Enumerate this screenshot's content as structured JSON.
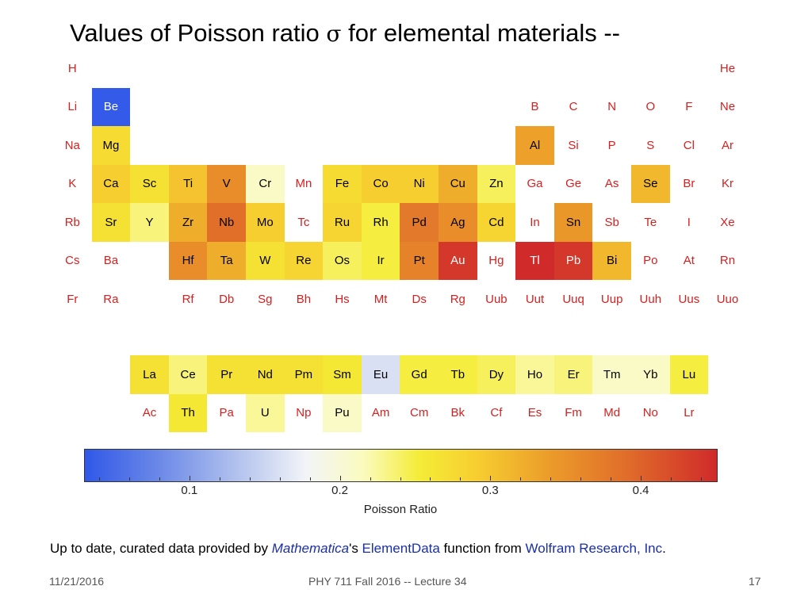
{
  "slide": {
    "title_prefix": "Values of  Poisson ratio ",
    "title_symbol": "σ",
    "title_suffix": " for elemental materials --",
    "credit": {
      "part1": "Up to date, curated data provided by ",
      "mathematica": "Mathematica",
      "part2": "'s ",
      "elementdata": "ElementData",
      "part3": " function from ",
      "wolfram": "Wolfram Research, Inc",
      "part4": "."
    },
    "footer": {
      "date": "11/21/2016",
      "course": "PHY 711  Fall 2016 -- Lecture 34",
      "page": "17"
    }
  },
  "chart_data": {
    "type": "heatmap",
    "colorbar": {
      "label": "Poisson Ratio",
      "range": [
        0.03,
        0.45
      ],
      "ticks": [
        "0.1",
        "0.2",
        "0.3",
        "0.4"
      ],
      "tick_values": [
        0.1,
        0.2,
        0.3,
        0.4
      ],
      "colors": [
        "#3058e8",
        "#6d8ae8",
        "#b7c6ee",
        "#f2f4f8",
        "#fbfbbf",
        "#f4ec36",
        "#f7ce30",
        "#eb9a2a",
        "#e06c2a",
        "#d02a2a"
      ]
    },
    "no_data_color": "#d62020",
    "elements": [
      {
        "symbol": "H",
        "period": 1,
        "group": 1,
        "value": null
      },
      {
        "symbol": "He",
        "period": 1,
        "group": 18,
        "value": null
      },
      {
        "symbol": "Li",
        "period": 2,
        "group": 1,
        "value": null
      },
      {
        "symbol": "Be",
        "period": 2,
        "group": 2,
        "value": 0.032
      },
      {
        "symbol": "B",
        "period": 2,
        "group": 13,
        "value": null
      },
      {
        "symbol": "C",
        "period": 2,
        "group": 14,
        "value": null
      },
      {
        "symbol": "N",
        "period": 2,
        "group": 15,
        "value": null
      },
      {
        "symbol": "O",
        "period": 2,
        "group": 16,
        "value": null
      },
      {
        "symbol": "F",
        "period": 2,
        "group": 17,
        "value": null
      },
      {
        "symbol": "Ne",
        "period": 2,
        "group": 18,
        "value": null
      },
      {
        "symbol": "Na",
        "period": 3,
        "group": 1,
        "value": null
      },
      {
        "symbol": "Mg",
        "period": 3,
        "group": 2,
        "value": 0.29
      },
      {
        "symbol": "Al",
        "period": 3,
        "group": 13,
        "value": 0.35
      },
      {
        "symbol": "Si",
        "period": 3,
        "group": 14,
        "value": null
      },
      {
        "symbol": "P",
        "period": 3,
        "group": 15,
        "value": null
      },
      {
        "symbol": "S",
        "period": 3,
        "group": 16,
        "value": null
      },
      {
        "symbol": "Cl",
        "period": 3,
        "group": 17,
        "value": null
      },
      {
        "symbol": "Ar",
        "period": 3,
        "group": 18,
        "value": null
      },
      {
        "symbol": "K",
        "period": 4,
        "group": 1,
        "value": null
      },
      {
        "symbol": "Ca",
        "period": 4,
        "group": 2,
        "value": 0.31
      },
      {
        "symbol": "Sc",
        "period": 4,
        "group": 3,
        "value": 0.28
      },
      {
        "symbol": "Ti",
        "period": 4,
        "group": 4,
        "value": 0.32
      },
      {
        "symbol": "V",
        "period": 4,
        "group": 5,
        "value": 0.37
      },
      {
        "symbol": "Cr",
        "period": 4,
        "group": 6,
        "value": 0.21
      },
      {
        "symbol": "Mn",
        "period": 4,
        "group": 7,
        "value": null
      },
      {
        "symbol": "Fe",
        "period": 4,
        "group": 8,
        "value": 0.29
      },
      {
        "symbol": "Co",
        "period": 4,
        "group": 9,
        "value": 0.31
      },
      {
        "symbol": "Ni",
        "period": 4,
        "group": 10,
        "value": 0.31
      },
      {
        "symbol": "Cu",
        "period": 4,
        "group": 11,
        "value": 0.34
      },
      {
        "symbol": "Zn",
        "period": 4,
        "group": 12,
        "value": 0.25
      },
      {
        "symbol": "Ga",
        "period": 4,
        "group": 13,
        "value": null
      },
      {
        "symbol": "Ge",
        "period": 4,
        "group": 14,
        "value": null
      },
      {
        "symbol": "As",
        "period": 4,
        "group": 15,
        "value": null
      },
      {
        "symbol": "Se",
        "period": 4,
        "group": 16,
        "value": 0.33
      },
      {
        "symbol": "Br",
        "period": 4,
        "group": 17,
        "value": null
      },
      {
        "symbol": "Kr",
        "period": 4,
        "group": 18,
        "value": null
      },
      {
        "symbol": "Rb",
        "period": 5,
        "group": 1,
        "value": null
      },
      {
        "symbol": "Sr",
        "period": 5,
        "group": 2,
        "value": 0.28
      },
      {
        "symbol": "Y",
        "period": 5,
        "group": 3,
        "value": 0.24
      },
      {
        "symbol": "Zr",
        "period": 5,
        "group": 4,
        "value": 0.34
      },
      {
        "symbol": "Nb",
        "period": 5,
        "group": 5,
        "value": 0.4
      },
      {
        "symbol": "Mo",
        "period": 5,
        "group": 6,
        "value": 0.31
      },
      {
        "symbol": "Tc",
        "period": 5,
        "group": 7,
        "value": null
      },
      {
        "symbol": "Ru",
        "period": 5,
        "group": 8,
        "value": 0.3
      },
      {
        "symbol": "Rh",
        "period": 5,
        "group": 9,
        "value": 0.26
      },
      {
        "symbol": "Pd",
        "period": 5,
        "group": 10,
        "value": 0.39
      },
      {
        "symbol": "Ag",
        "period": 5,
        "group": 11,
        "value": 0.37
      },
      {
        "symbol": "Cd",
        "period": 5,
        "group": 12,
        "value": 0.3
      },
      {
        "symbol": "In",
        "period": 5,
        "group": 13,
        "value": null
      },
      {
        "symbol": "Sn",
        "period": 5,
        "group": 14,
        "value": 0.36
      },
      {
        "symbol": "Sb",
        "period": 5,
        "group": 15,
        "value": null
      },
      {
        "symbol": "Te",
        "period": 5,
        "group": 16,
        "value": null
      },
      {
        "symbol": "I",
        "period": 5,
        "group": 17,
        "value": null
      },
      {
        "symbol": "Xe",
        "period": 5,
        "group": 18,
        "value": null
      },
      {
        "symbol": "Cs",
        "period": 6,
        "group": 1,
        "value": null
      },
      {
        "symbol": "Ba",
        "period": 6,
        "group": 2,
        "value": null
      },
      {
        "symbol": "Hf",
        "period": 6,
        "group": 4,
        "value": 0.37
      },
      {
        "symbol": "Ta",
        "period": 6,
        "group": 5,
        "value": 0.34
      },
      {
        "symbol": "W",
        "period": 6,
        "group": 6,
        "value": 0.28
      },
      {
        "symbol": "Re",
        "period": 6,
        "group": 7,
        "value": 0.3
      },
      {
        "symbol": "Os",
        "period": 6,
        "group": 8,
        "value": 0.25
      },
      {
        "symbol": "Ir",
        "period": 6,
        "group": 9,
        "value": 0.26
      },
      {
        "symbol": "Pt",
        "period": 6,
        "group": 10,
        "value": 0.38
      },
      {
        "symbol": "Au",
        "period": 6,
        "group": 11,
        "value": 0.44
      },
      {
        "symbol": "Hg",
        "period": 6,
        "group": 12,
        "value": null
      },
      {
        "symbol": "Tl",
        "period": 6,
        "group": 13,
        "value": 0.45
      },
      {
        "symbol": "Pb",
        "period": 6,
        "group": 14,
        "value": 0.44
      },
      {
        "symbol": "Bi",
        "period": 6,
        "group": 15,
        "value": 0.33
      },
      {
        "symbol": "Po",
        "period": 6,
        "group": 16,
        "value": null
      },
      {
        "symbol": "At",
        "period": 6,
        "group": 17,
        "value": null
      },
      {
        "symbol": "Rn",
        "period": 6,
        "group": 18,
        "value": null
      },
      {
        "symbol": "Fr",
        "period": 7,
        "group": 1,
        "value": null
      },
      {
        "symbol": "Ra",
        "period": 7,
        "group": 2,
        "value": null
      },
      {
        "symbol": "Rf",
        "period": 7,
        "group": 4,
        "value": null
      },
      {
        "symbol": "Db",
        "period": 7,
        "group": 5,
        "value": null
      },
      {
        "symbol": "Sg",
        "period": 7,
        "group": 6,
        "value": null
      },
      {
        "symbol": "Bh",
        "period": 7,
        "group": 7,
        "value": null
      },
      {
        "symbol": "Hs",
        "period": 7,
        "group": 8,
        "value": null
      },
      {
        "symbol": "Mt",
        "period": 7,
        "group": 9,
        "value": null
      },
      {
        "symbol": "Ds",
        "period": 7,
        "group": 10,
        "value": null
      },
      {
        "symbol": "Rg",
        "period": 7,
        "group": 11,
        "value": null
      },
      {
        "symbol": "Uub",
        "period": 7,
        "group": 12,
        "value": null
      },
      {
        "symbol": "Uut",
        "period": 7,
        "group": 13,
        "value": null
      },
      {
        "symbol": "Uuq",
        "period": 7,
        "group": 14,
        "value": null
      },
      {
        "symbol": "Uup",
        "period": 7,
        "group": 15,
        "value": null
      },
      {
        "symbol": "Uuh",
        "period": 7,
        "group": 16,
        "value": null
      },
      {
        "symbol": "Uus",
        "period": 7,
        "group": 17,
        "value": null
      },
      {
        "symbol": "Uuo",
        "period": 7,
        "group": 18,
        "value": null
      },
      {
        "symbol": "La",
        "series": "lanthanide",
        "index": 0,
        "value": 0.28
      },
      {
        "symbol": "Ce",
        "series": "lanthanide",
        "index": 1,
        "value": 0.24
      },
      {
        "symbol": "Pr",
        "series": "lanthanide",
        "index": 2,
        "value": 0.28
      },
      {
        "symbol": "Nd",
        "series": "lanthanide",
        "index": 3,
        "value": 0.28
      },
      {
        "symbol": "Pm",
        "series": "lanthanide",
        "index": 4,
        "value": 0.28
      },
      {
        "symbol": "Sm",
        "series": "lanthanide",
        "index": 5,
        "value": 0.27
      },
      {
        "symbol": "Eu",
        "series": "lanthanide",
        "index": 6,
        "value": 0.15
      },
      {
        "symbol": "Gd",
        "series": "lanthanide",
        "index": 7,
        "value": 0.26
      },
      {
        "symbol": "Tb",
        "series": "lanthanide",
        "index": 8,
        "value": 0.26
      },
      {
        "symbol": "Dy",
        "series": "lanthanide",
        "index": 9,
        "value": 0.25
      },
      {
        "symbol": "Ho",
        "series": "lanthanide",
        "index": 10,
        "value": 0.23
      },
      {
        "symbol": "Er",
        "series": "lanthanide",
        "index": 11,
        "value": 0.24
      },
      {
        "symbol": "Tm",
        "series": "lanthanide",
        "index": 12,
        "value": 0.21
      },
      {
        "symbol": "Yb",
        "series": "lanthanide",
        "index": 13,
        "value": 0.21
      },
      {
        "symbol": "Lu",
        "series": "lanthanide",
        "index": 14,
        "value": 0.26
      },
      {
        "symbol": "Ac",
        "series": "actinide",
        "index": 0,
        "value": null
      },
      {
        "symbol": "Th",
        "series": "actinide",
        "index": 1,
        "value": 0.27
      },
      {
        "symbol": "Pa",
        "series": "actinide",
        "index": 2,
        "value": null
      },
      {
        "symbol": "U",
        "series": "actinide",
        "index": 3,
        "value": 0.23
      },
      {
        "symbol": "Np",
        "series": "actinide",
        "index": 4,
        "value": null
      },
      {
        "symbol": "Pu",
        "series": "actinide",
        "index": 5,
        "value": 0.21
      },
      {
        "symbol": "Am",
        "series": "actinide",
        "index": 6,
        "value": null
      },
      {
        "symbol": "Cm",
        "series": "actinide",
        "index": 7,
        "value": null
      },
      {
        "symbol": "Bk",
        "series": "actinide",
        "index": 8,
        "value": null
      },
      {
        "symbol": "Cf",
        "series": "actinide",
        "index": 9,
        "value": null
      },
      {
        "symbol": "Es",
        "series": "actinide",
        "index": 10,
        "value": null
      },
      {
        "symbol": "Fm",
        "series": "actinide",
        "index": 11,
        "value": null
      },
      {
        "symbol": "Md",
        "series": "actinide",
        "index": 12,
        "value": null
      },
      {
        "symbol": "No",
        "series": "actinide",
        "index": 13,
        "value": null
      },
      {
        "symbol": "Lr",
        "series": "actinide",
        "index": 14,
        "value": null
      }
    ]
  }
}
